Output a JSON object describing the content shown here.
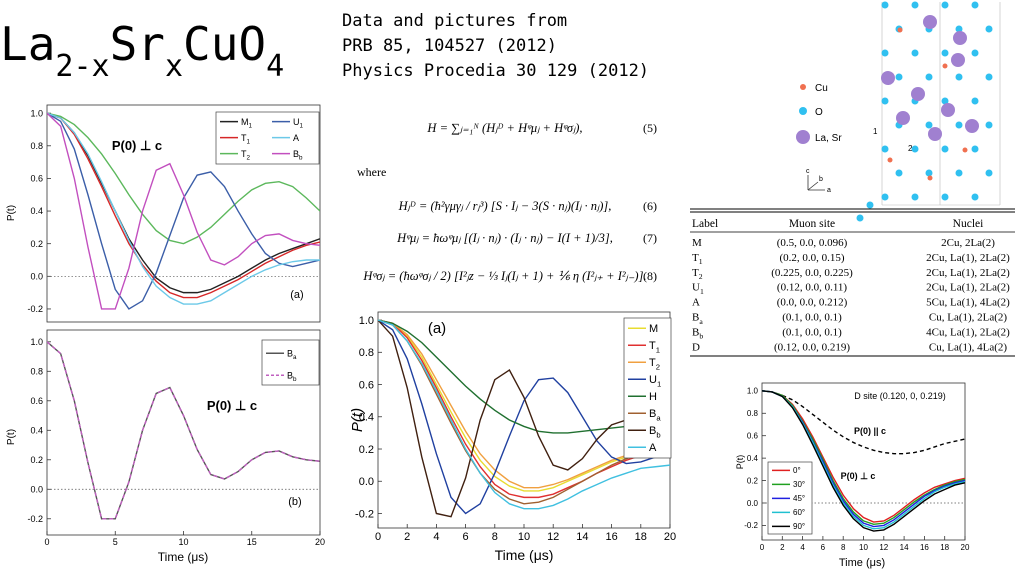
{
  "header": {
    "title": [
      "La",
      "2-x",
      "Sr",
      "x",
      "CuO",
      "4"
    ],
    "references": [
      "Data and pictures from",
      "PRB 85, 104527 (2012)",
      "Physics Procedia 30 129 (2012)"
    ]
  },
  "equations": {
    "lines": [
      {
        "text": "H = ∑ⱼ₌₁ᴺ (Hⱼᴰ + Hᵠμⱼ + Hᵠσⱼ),",
        "number": "(5)"
      },
      {
        "text": "Hⱼᴰ = (ħ²γμγⱼ / rⱼ³) [S · Iⱼ − 3(S · nⱼ)(Iⱼ · nⱼ)],",
        "number": "(6)"
      },
      {
        "text": "Hᵠμⱼ = ħωᵠμⱼ [(Iⱼ · nⱼ) · (Iⱼ · nⱼ) − I(I + 1)/3],",
        "number": "(7)"
      },
      {
        "text": "Hᵠσⱼ = (ħωᵠσⱼ / 2) [I²ⱼz − ⅓ Iⱼ(Iⱼ + 1) + ⅙ η (I²ⱼ₊ + I²ⱼ₋)].",
        "number": "(8)"
      }
    ],
    "where": "where"
  },
  "structure": {
    "legend": [
      "Cu",
      "O",
      "La, Sr"
    ],
    "site_labels": [
      "1",
      "2"
    ],
    "axes": [
      "c",
      "b",
      "a"
    ]
  },
  "table": {
    "columns": [
      "Label",
      "Muon site",
      "Nuclei"
    ],
    "rows": [
      [
        "M",
        "(0.5, 0.0, 0.096)",
        "2Cu, 2La(2)"
      ],
      [
        "T1",
        "(0.2, 0.0, 0.15)",
        "2Cu, La(1), 2La(2)"
      ],
      [
        "T2",
        "(0.225, 0.0, 0.225)",
        "2Cu, La(1), 2La(2)"
      ],
      [
        "U1",
        "(0.12, 0.0, 0.11)",
        "2Cu, La(1), 2La(2)"
      ],
      [
        "A",
        "(0.0, 0.0, 0.212)",
        "5Cu, La(1), 4La(2)"
      ],
      [
        "Ba",
        "(0.1, 0.0, 0.1)",
        "Cu, La(1), 2La(2)"
      ],
      [
        "Bb",
        "(0.1, 0.0, 0.1)",
        "4Cu, La(1), 2La(2)"
      ],
      [
        "D",
        "(0.12, 0.0, 0.219)",
        "Cu, La(1), 4La(2)"
      ]
    ]
  },
  "chart_data": [
    {
      "type": "line",
      "ylabel": "P(t)",
      "annotations": [
        "P(0) ⊥ c",
        "(a)"
      ],
      "x": [
        0,
        1,
        2,
        3,
        4,
        5,
        6,
        7,
        8,
        9,
        10,
        11,
        12,
        13,
        14,
        15,
        16,
        17,
        18,
        19,
        20
      ],
      "xlim": [
        0,
        20
      ],
      "ylim": [
        -0.28,
        1.05
      ],
      "yticks": [
        -0.2,
        {
          "value": 0,
          "label": "0.0"
        },
        0.2,
        0.4,
        0.6,
        0.8,
        {
          "value": 1,
          "label": "1.0"
        }
      ],
      "series": [
        {
          "name": "M1",
          "color": "#222222",
          "values": [
            1,
            0.97,
            0.88,
            0.74,
            0.57,
            0.4,
            0.23,
            0.1,
            -0.01,
            -0.07,
            -0.1,
            -0.1,
            -0.08,
            -0.04,
            0.0,
            0.05,
            0.1,
            0.14,
            0.17,
            0.2,
            0.23
          ]
        },
        {
          "name": "T1",
          "color": "#d62728",
          "values": [
            1,
            0.97,
            0.87,
            0.72,
            0.55,
            0.37,
            0.2,
            0.07,
            -0.03,
            -0.1,
            -0.13,
            -0.13,
            -0.1,
            -0.06,
            -0.02,
            0.03,
            0.08,
            0.12,
            0.16,
            0.19,
            0.21
          ]
        },
        {
          "name": "T2",
          "color": "#5cb85c",
          "values": [
            1,
            0.98,
            0.93,
            0.85,
            0.75,
            0.63,
            0.5,
            0.38,
            0.28,
            0.22,
            0.2,
            0.24,
            0.3,
            0.38,
            0.46,
            0.53,
            0.57,
            0.58,
            0.55,
            0.48,
            0.4
          ]
        },
        {
          "name": "U1",
          "color": "#3b5ea8",
          "values": [
            1,
            0.95,
            0.78,
            0.5,
            0.2,
            -0.08,
            -0.2,
            -0.15,
            0.02,
            0.25,
            0.48,
            0.62,
            0.64,
            0.55,
            0.4,
            0.26,
            0.14,
            0.08,
            0.06,
            0.08,
            0.1
          ]
        },
        {
          "name": "A",
          "color": "#6cc9e8",
          "values": [
            1,
            0.97,
            0.88,
            0.75,
            0.58,
            0.4,
            0.22,
            0.06,
            -0.06,
            -0.13,
            -0.17,
            -0.17,
            -0.15,
            -0.1,
            -0.05,
            0.0,
            0.04,
            0.07,
            0.09,
            0.1,
            0.1
          ]
        },
        {
          "name": "Bb",
          "color": "#c24fbf",
          "values": [
            1,
            0.92,
            0.6,
            0.18,
            -0.2,
            -0.2,
            0.05,
            0.4,
            0.65,
            0.69,
            0.5,
            0.27,
            0.1,
            0.07,
            0.12,
            0.2,
            0.25,
            0.26,
            0.22,
            0.2,
            0.19
          ]
        }
      ]
    },
    {
      "type": "line",
      "ylabel": "P(t)",
      "xlabel": "Time (μs)",
      "annotations": [
        "P(0) ⊥ c",
        "(b)"
      ],
      "x": [
        0,
        1,
        2,
        3,
        4,
        5,
        6,
        7,
        8,
        9,
        10,
        11,
        12,
        13,
        14,
        15,
        16,
        17,
        18,
        19,
        20
      ],
      "xlim": [
        0,
        20
      ],
      "xticks": [
        0,
        5,
        10,
        15,
        20
      ],
      "ylim": [
        -0.31,
        1.08
      ],
      "yticks": [
        -0.2,
        {
          "value": 0,
          "label": "0.0"
        },
        0.2,
        0.4,
        0.6,
        0.8,
        {
          "value": 1,
          "label": "1.0"
        }
      ],
      "series": [
        {
          "name": "Ba",
          "color": "#555555",
          "values": [
            1,
            0.92,
            0.6,
            0.18,
            -0.2,
            -0.2,
            0.05,
            0.4,
            0.65,
            0.69,
            0.5,
            0.27,
            0.1,
            0.07,
            0.12,
            0.2,
            0.25,
            0.26,
            0.22,
            0.2,
            0.19
          ]
        },
        {
          "name": "Bb",
          "color": "#c060c0",
          "dashed": true,
          "values": [
            1,
            0.92,
            0.6,
            0.18,
            -0.2,
            -0.2,
            0.05,
            0.4,
            0.65,
            0.69,
            0.5,
            0.27,
            0.1,
            0.07,
            0.12,
            0.2,
            0.25,
            0.26,
            0.22,
            0.2,
            0.19
          ]
        }
      ]
    },
    {
      "type": "line",
      "ylabel": "P(t)",
      "xlabel": "Time (μs)",
      "annotations": [
        "(a)"
      ],
      "x": [
        0,
        1,
        2,
        3,
        4,
        5,
        6,
        7,
        8,
        9,
        10,
        11,
        12,
        13,
        14,
        15,
        16,
        17,
        18,
        19,
        20
      ],
      "xlim": [
        0,
        20
      ],
      "xticks": [
        0,
        2,
        4,
        6,
        8,
        10,
        12,
        14,
        16,
        18,
        20
      ],
      "ylim": [
        -0.29,
        1.05
      ],
      "yticks": [
        -0.2,
        {
          "value": 0,
          "label": "0.0"
        },
        0.2,
        0.4,
        0.6,
        0.8,
        {
          "value": 1,
          "label": "1.0"
        }
      ],
      "series": [
        {
          "name": "M",
          "color": "#e8dc30",
          "values": [
            1,
            0.98,
            0.9,
            0.77,
            0.6,
            0.43,
            0.27,
            0.13,
            0.03,
            -0.03,
            -0.06,
            -0.06,
            -0.04,
            0.0,
            0.04,
            0.08,
            0.12,
            0.15,
            0.18,
            0.2,
            0.22
          ]
        },
        {
          "name": "T1",
          "color": "#e03030",
          "values": [
            1,
            0.98,
            0.89,
            0.75,
            0.58,
            0.4,
            0.23,
            0.09,
            -0.02,
            -0.08,
            -0.1,
            -0.1,
            -0.08,
            -0.04,
            0.0,
            0.05,
            0.09,
            0.13,
            0.16,
            0.18,
            0.2
          ]
        },
        {
          "name": "T2",
          "color": "#f0a040",
          "values": [
            1,
            0.98,
            0.91,
            0.79,
            0.63,
            0.47,
            0.31,
            0.17,
            0.07,
            0.0,
            -0.04,
            -0.04,
            -0.02,
            0.01,
            0.05,
            0.09,
            0.13,
            0.16,
            0.19,
            0.21,
            0.23
          ]
        },
        {
          "name": "U1",
          "color": "#2040a0",
          "values": [
            1,
            0.94,
            0.76,
            0.48,
            0.17,
            -0.1,
            -0.2,
            -0.14,
            0.05,
            0.28,
            0.5,
            0.63,
            0.64,
            0.55,
            0.4,
            0.25,
            0.15,
            0.11,
            0.12,
            0.15,
            0.18
          ]
        },
        {
          "name": "H",
          "color": "#207030",
          "values": [
            1,
            0.98,
            0.93,
            0.86,
            0.77,
            0.68,
            0.59,
            0.51,
            0.44,
            0.38,
            0.34,
            0.31,
            0.3,
            0.3,
            0.31,
            0.32,
            0.33,
            0.34,
            0.36,
            0.38,
            0.4
          ]
        },
        {
          "name": "Ba",
          "color": "#a06030",
          "values": [
            1,
            0.97,
            0.87,
            0.72,
            0.54,
            0.36,
            0.19,
            0.05,
            -0.05,
            -0.11,
            -0.14,
            -0.13,
            -0.1,
            -0.05,
            0.0,
            0.05,
            0.1,
            0.14,
            0.17,
            0.19,
            0.21
          ]
        },
        {
          "name": "Bb",
          "color": "#402010",
          "values": [
            1,
            0.9,
            0.58,
            0.15,
            -0.2,
            -0.22,
            0.02,
            0.38,
            0.63,
            0.69,
            0.52,
            0.28,
            0.1,
            0.07,
            0.14,
            0.26,
            0.35,
            0.38,
            0.35,
            0.3,
            0.27
          ]
        },
        {
          "name": "A",
          "color": "#40c0e0",
          "values": [
            1,
            0.97,
            0.87,
            0.73,
            0.56,
            0.38,
            0.2,
            0.05,
            -0.07,
            -0.14,
            -0.17,
            -0.17,
            -0.15,
            -0.11,
            -0.06,
            -0.02,
            0.02,
            0.05,
            0.08,
            0.09,
            0.1
          ]
        }
      ]
    },
    {
      "type": "line",
      "ylabel": "P(t)",
      "xlabel": "Time (μs)",
      "annotations": [
        "D site (0.120, 0, 0.219)",
        "P(0) || c",
        "P(0) ⊥ c"
      ],
      "x": [
        0,
        1,
        2,
        3,
        4,
        5,
        6,
        7,
        8,
        9,
        10,
        11,
        12,
        13,
        14,
        15,
        16,
        17,
        18,
        19,
        20
      ],
      "xlim": [
        0,
        20
      ],
      "xticks": [
        0,
        2,
        4,
        6,
        8,
        10,
        12,
        14,
        16,
        18,
        20
      ],
      "ylim": [
        -0.33,
        1.07
      ],
      "yticks": [
        -0.2,
        {
          "value": 0,
          "label": "0.0"
        },
        0.2,
        0.4,
        0.6,
        0.8,
        {
          "value": 1,
          "label": "1.0"
        }
      ],
      "series": [
        {
          "color": "#000000",
          "dashed": true,
          "values": [
            1,
            0.99,
            0.96,
            0.92,
            0.86,
            0.79,
            0.72,
            0.65,
            0.59,
            0.54,
            0.5,
            0.47,
            0.45,
            0.44,
            0.44,
            0.45,
            0.47,
            0.5,
            0.53,
            0.55,
            0.57
          ]
        },
        {
          "name": "0°",
          "color": "#e02020",
          "values": [
            1,
            0.99,
            0.96,
            0.88,
            0.75,
            0.59,
            0.41,
            0.23,
            0.07,
            -0.05,
            -0.13,
            -0.17,
            -0.16,
            -0.11,
            -0.04,
            0.03,
            0.09,
            0.14,
            0.17,
            0.2,
            0.22
          ]
        },
        {
          "name": "30°",
          "color": "#20a020",
          "values": [
            1,
            0.99,
            0.96,
            0.87,
            0.73,
            0.57,
            0.39,
            0.2,
            0.04,
            -0.08,
            -0.16,
            -0.19,
            -0.18,
            -0.13,
            -0.06,
            0.01,
            0.07,
            0.12,
            0.16,
            0.19,
            0.21
          ]
        },
        {
          "name": "45°",
          "color": "#2020e0",
          "values": [
            1,
            0.99,
            0.95,
            0.86,
            0.72,
            0.55,
            0.37,
            0.18,
            0.02,
            -0.1,
            -0.18,
            -0.21,
            -0.2,
            -0.15,
            -0.08,
            -0.01,
            0.06,
            0.11,
            0.15,
            0.18,
            0.2
          ]
        },
        {
          "name": "60°",
          "color": "#20c0d0",
          "values": [
            1,
            0.99,
            0.95,
            0.86,
            0.71,
            0.54,
            0.35,
            0.16,
            0.0,
            -0.12,
            -0.2,
            -0.23,
            -0.22,
            -0.17,
            -0.1,
            -0.03,
            0.04,
            0.1,
            0.14,
            0.17,
            0.19
          ]
        },
        {
          "name": "90°",
          "color": "#000000",
          "values": [
            1,
            0.99,
            0.95,
            0.85,
            0.7,
            0.52,
            0.33,
            0.14,
            -0.02,
            -0.14,
            -0.22,
            -0.25,
            -0.24,
            -0.19,
            -0.12,
            -0.05,
            0.02,
            0.08,
            0.12,
            0.16,
            0.18
          ]
        }
      ]
    }
  ]
}
